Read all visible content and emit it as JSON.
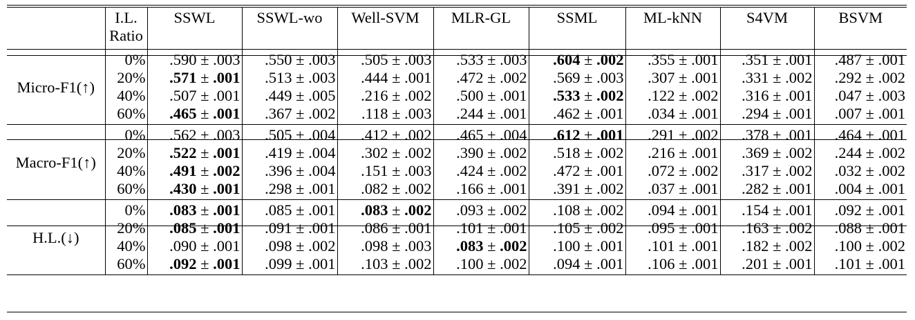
{
  "header": {
    "metric": "",
    "ratio_line1": "I.L.",
    "ratio_line2": "Ratio",
    "methods": [
      "SSWL",
      "SSWL-wo",
      "Well-SVM",
      "MLR-GL",
      "SSML",
      "ML-kNN",
      "S4VM",
      "BSVM"
    ]
  },
  "pm": "±",
  "groups": [
    {
      "metric": "Micro-F1(↑)",
      "rows": [
        {
          "ratio": "0%",
          "cells": [
            {
              "m": ".590",
              "s": ".003",
              "bold": false
            },
            {
              "m": ".550",
              "s": ".003",
              "bold": false
            },
            {
              "m": ".505",
              "s": ".003",
              "bold": false
            },
            {
              "m": ".533",
              "s": ".003",
              "bold": false
            },
            {
              "m": ".604",
              "s": ".002",
              "bold": true
            },
            {
              "m": ".355",
              "s": ".001",
              "bold": false
            },
            {
              "m": ".351",
              "s": ".001",
              "bold": false
            },
            {
              "m": ".487",
              "s": ".001",
              "bold": false
            }
          ]
        },
        {
          "ratio": "20%",
          "cells": [
            {
              "m": ".571",
              "s": ".001",
              "bold": true
            },
            {
              "m": ".513",
              "s": ".003",
              "bold": false
            },
            {
              "m": ".444",
              "s": ".001",
              "bold": false
            },
            {
              "m": ".472",
              "s": ".002",
              "bold": false
            },
            {
              "m": ".569",
              "s": ".003",
              "bold": false
            },
            {
              "m": ".307",
              "s": ".001",
              "bold": false
            },
            {
              "m": ".331",
              "s": ".002",
              "bold": false
            },
            {
              "m": ".292",
              "s": ".002",
              "bold": false
            }
          ]
        },
        {
          "ratio": "40%",
          "cells": [
            {
              "m": ".507",
              "s": ".001",
              "bold": false
            },
            {
              "m": ".449",
              "s": ".005",
              "bold": false
            },
            {
              "m": ".216",
              "s": ".002",
              "bold": false
            },
            {
              "m": ".500",
              "s": ".001",
              "bold": false
            },
            {
              "m": ".533",
              "s": ".002",
              "bold": true
            },
            {
              "m": ".122",
              "s": ".002",
              "bold": false
            },
            {
              "m": ".316",
              "s": ".001",
              "bold": false
            },
            {
              "m": ".047",
              "s": ".003",
              "bold": false
            }
          ]
        },
        {
          "ratio": "60%",
          "cells": [
            {
              "m": ".465",
              "s": ".001",
              "bold": true
            },
            {
              "m": ".367",
              "s": ".002",
              "bold": false
            },
            {
              "m": ".118",
              "s": ".003",
              "bold": false
            },
            {
              "m": ".244",
              "s": ".001",
              "bold": false
            },
            {
              "m": ".462",
              "s": ".001",
              "bold": false
            },
            {
              "m": ".034",
              "s": ".001",
              "bold": false
            },
            {
              "m": ".294",
              "s": ".001",
              "bold": false
            },
            {
              "m": ".007",
              "s": ".001",
              "bold": false
            }
          ]
        }
      ]
    },
    {
      "metric": "Macro-F1(↑)",
      "rows": [
        {
          "ratio": "0%",
          "cells": [
            {
              "m": ".562",
              "s": ".003",
              "bold": false
            },
            {
              "m": ".505",
              "s": ".004",
              "bold": false
            },
            {
              "m": ".412",
              "s": ".002",
              "bold": false
            },
            {
              "m": ".465",
              "s": ".004",
              "bold": false
            },
            {
              "m": ".612",
              "s": ".001",
              "bold": true
            },
            {
              "m": ".291",
              "s": ".002",
              "bold": false
            },
            {
              "m": ".378",
              "s": ".001",
              "bold": false
            },
            {
              "m": ".464",
              "s": ".001",
              "bold": false
            }
          ]
        },
        {
          "ratio": "20%",
          "cells": [
            {
              "m": ".522",
              "s": ".001",
              "bold": true
            },
            {
              "m": ".419",
              "s": ".004",
              "bold": false
            },
            {
              "m": ".302",
              "s": ".002",
              "bold": false
            },
            {
              "m": ".390",
              "s": ".002",
              "bold": false
            },
            {
              "m": ".518",
              "s": ".002",
              "bold": false
            },
            {
              "m": ".216",
              "s": ".001",
              "bold": false
            },
            {
              "m": ".369",
              "s": ".002",
              "bold": false
            },
            {
              "m": ".244",
              "s": ".002",
              "bold": false
            }
          ]
        },
        {
          "ratio": "40%",
          "cells": [
            {
              "m": ".491",
              "s": ".002",
              "bold": true
            },
            {
              "m": ".396",
              "s": ".004",
              "bold": false
            },
            {
              "m": ".151",
              "s": ".003",
              "bold": false
            },
            {
              "m": ".424",
              "s": ".002",
              "bold": false
            },
            {
              "m": ".472",
              "s": ".001",
              "bold": false
            },
            {
              "m": ".072",
              "s": ".002",
              "bold": false
            },
            {
              "m": ".317",
              "s": ".002",
              "bold": false
            },
            {
              "m": ".032",
              "s": ".002",
              "bold": false
            }
          ]
        },
        {
          "ratio": "60%",
          "cells": [
            {
              "m": ".430",
              "s": ".001",
              "bold": true
            },
            {
              "m": ".298",
              "s": ".001",
              "bold": false
            },
            {
              "m": ".082",
              "s": ".002",
              "bold": false
            },
            {
              "m": ".166",
              "s": ".001",
              "bold": false
            },
            {
              "m": ".391",
              "s": ".002",
              "bold": false
            },
            {
              "m": ".037",
              "s": ".001",
              "bold": false
            },
            {
              "m": ".282",
              "s": ".001",
              "bold": false
            },
            {
              "m": ".004",
              "s": ".001",
              "bold": false
            }
          ]
        }
      ]
    },
    {
      "metric": "H.L.(↓)",
      "rows": [
        {
          "ratio": "0%",
          "cells": [
            {
              "m": ".083",
              "s": ".001",
              "bold": true
            },
            {
              "m": ".085",
              "s": ".001",
              "bold": false
            },
            {
              "m": ".083",
              "s": ".002",
              "bold": true
            },
            {
              "m": ".093",
              "s": ".002",
              "bold": false
            },
            {
              "m": ".108",
              "s": ".002",
              "bold": false
            },
            {
              "m": ".094",
              "s": ".001",
              "bold": false
            },
            {
              "m": ".154",
              "s": ".001",
              "bold": false
            },
            {
              "m": ".092",
              "s": ".001",
              "bold": false
            }
          ]
        },
        {
          "ratio": "20%",
          "cells": [
            {
              "m": ".085",
              "s": ".001",
              "bold": true
            },
            {
              "m": ".091",
              "s": ".001",
              "bold": false
            },
            {
              "m": ".086",
              "s": ".001",
              "bold": false
            },
            {
              "m": ".101",
              "s": ".001",
              "bold": false
            },
            {
              "m": ".105",
              "s": ".002",
              "bold": false
            },
            {
              "m": ".095",
              "s": ".001",
              "bold": false
            },
            {
              "m": ".163",
              "s": ".002",
              "bold": false
            },
            {
              "m": ".088",
              "s": ".001",
              "bold": false
            }
          ]
        },
        {
          "ratio": "40%",
          "cells": [
            {
              "m": ".090",
              "s": ".001",
              "bold": false
            },
            {
              "m": ".098",
              "s": ".002",
              "bold": false
            },
            {
              "m": ".098",
              "s": ".003",
              "bold": false
            },
            {
              "m": ".083",
              "s": ".002",
              "bold": true
            },
            {
              "m": ".100",
              "s": ".001",
              "bold": false
            },
            {
              "m": ".101",
              "s": ".001",
              "bold": false
            },
            {
              "m": ".182",
              "s": ".002",
              "bold": false
            },
            {
              "m": ".100",
              "s": ".002",
              "bold": false
            }
          ]
        },
        {
          "ratio": "60%",
          "cells": [
            {
              "m": ".092",
              "s": ".001",
              "bold": true
            },
            {
              "m": ".099",
              "s": ".001",
              "bold": false
            },
            {
              "m": ".103",
              "s": ".002",
              "bold": false
            },
            {
              "m": ".100",
              "s": ".002",
              "bold": false
            },
            {
              "m": ".094",
              "s": ".001",
              "bold": false
            },
            {
              "m": ".106",
              "s": ".001",
              "bold": false
            },
            {
              "m": ".201",
              "s": ".001",
              "bold": false
            },
            {
              "m": ".101",
              "s": ".001",
              "bold": false
            }
          ]
        }
      ]
    }
  ]
}
